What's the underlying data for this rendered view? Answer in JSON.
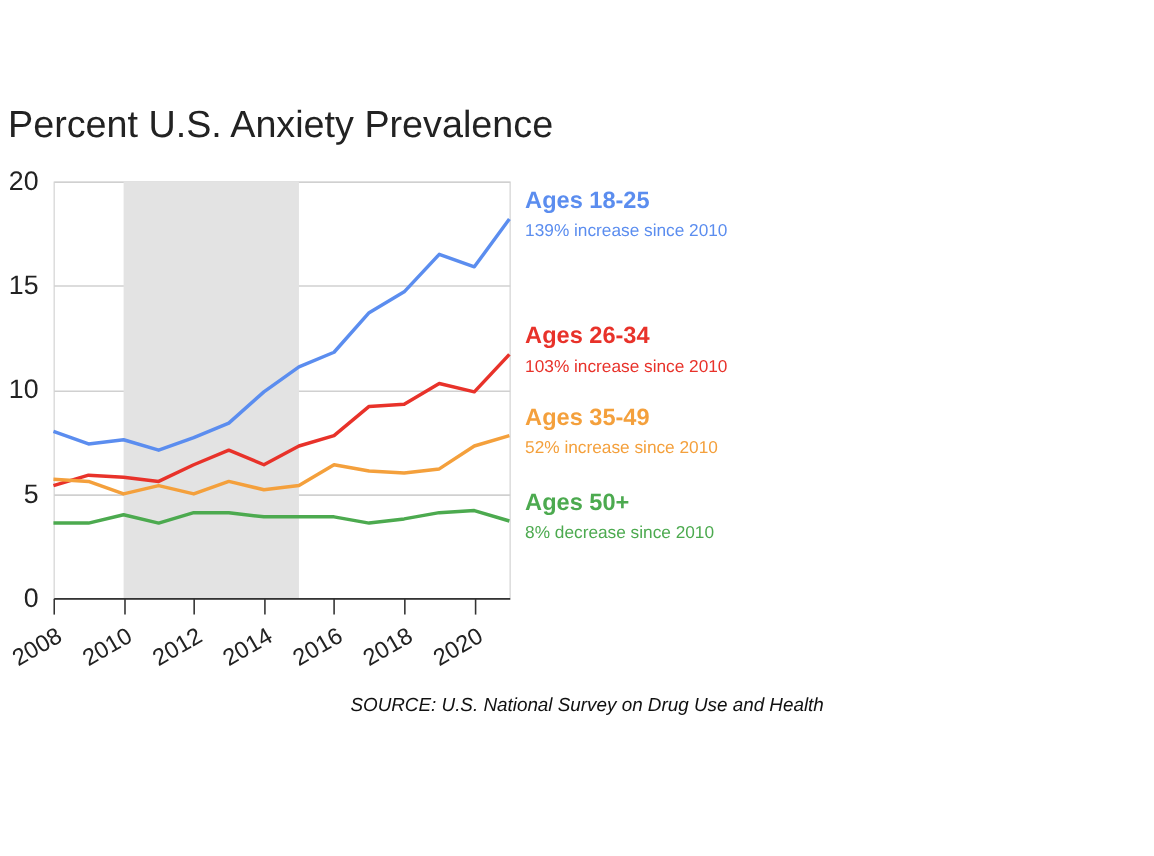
{
  "chart_data": {
    "type": "line",
    "title": "Percent U.S. Anxiety Prevalence",
    "x": [
      2008,
      2009,
      2010,
      2011,
      2012,
      2013,
      2014,
      2015,
      2016,
      2017,
      2018,
      2019,
      2020,
      2021
    ],
    "series": [
      {
        "name": "Ages 18-25",
        "color": "#5b8def",
        "values": [
          8.0,
          7.4,
          7.6,
          7.1,
          7.7,
          8.4,
          9.9,
          11.1,
          11.8,
          13.7,
          14.7,
          16.5,
          15.9,
          18.2
        ]
      },
      {
        "name": "Ages 26-34",
        "color": "#e8322a",
        "values": [
          5.4,
          5.9,
          5.8,
          5.6,
          6.4,
          7.1,
          6.4,
          7.3,
          7.8,
          9.2,
          9.3,
          10.3,
          9.9,
          11.7
        ]
      },
      {
        "name": "Ages 35-49",
        "color": "#f4a03c",
        "values": [
          5.7,
          5.6,
          5.0,
          5.4,
          5.0,
          5.6,
          5.2,
          5.4,
          6.4,
          6.1,
          6.0,
          6.2,
          7.3,
          7.8
        ]
      },
      {
        "name": "Ages 50+",
        "color": "#4caa4f",
        "values": [
          3.6,
          3.6,
          4.0,
          3.6,
          4.1,
          4.1,
          3.9,
          3.9,
          3.9,
          3.6,
          3.8,
          4.1,
          4.2,
          3.7
        ]
      }
    ],
    "annotations": [
      "139% increase since 2010",
      "103% increase since 2010",
      "52% increase since 2010",
      "8% decrease since 2010",
      "SOURCE: U.S. National Survey on Drug Use and Health"
    ],
    "bands": [
      {
        "axis": "x",
        "from": 2010,
        "to": 2015,
        "color": "#e3e3e3"
      }
    ],
    "xlim": [
      2008,
      2021
    ],
    "xticks": [
      2008,
      2010,
      2012,
      2014,
      2016,
      2018,
      2020
    ],
    "ylim": [
      0,
      20
    ],
    "yticks": [
      0,
      5,
      10,
      15,
      20
    ],
    "grid": "y",
    "line_style": "solid",
    "marker": "none"
  }
}
